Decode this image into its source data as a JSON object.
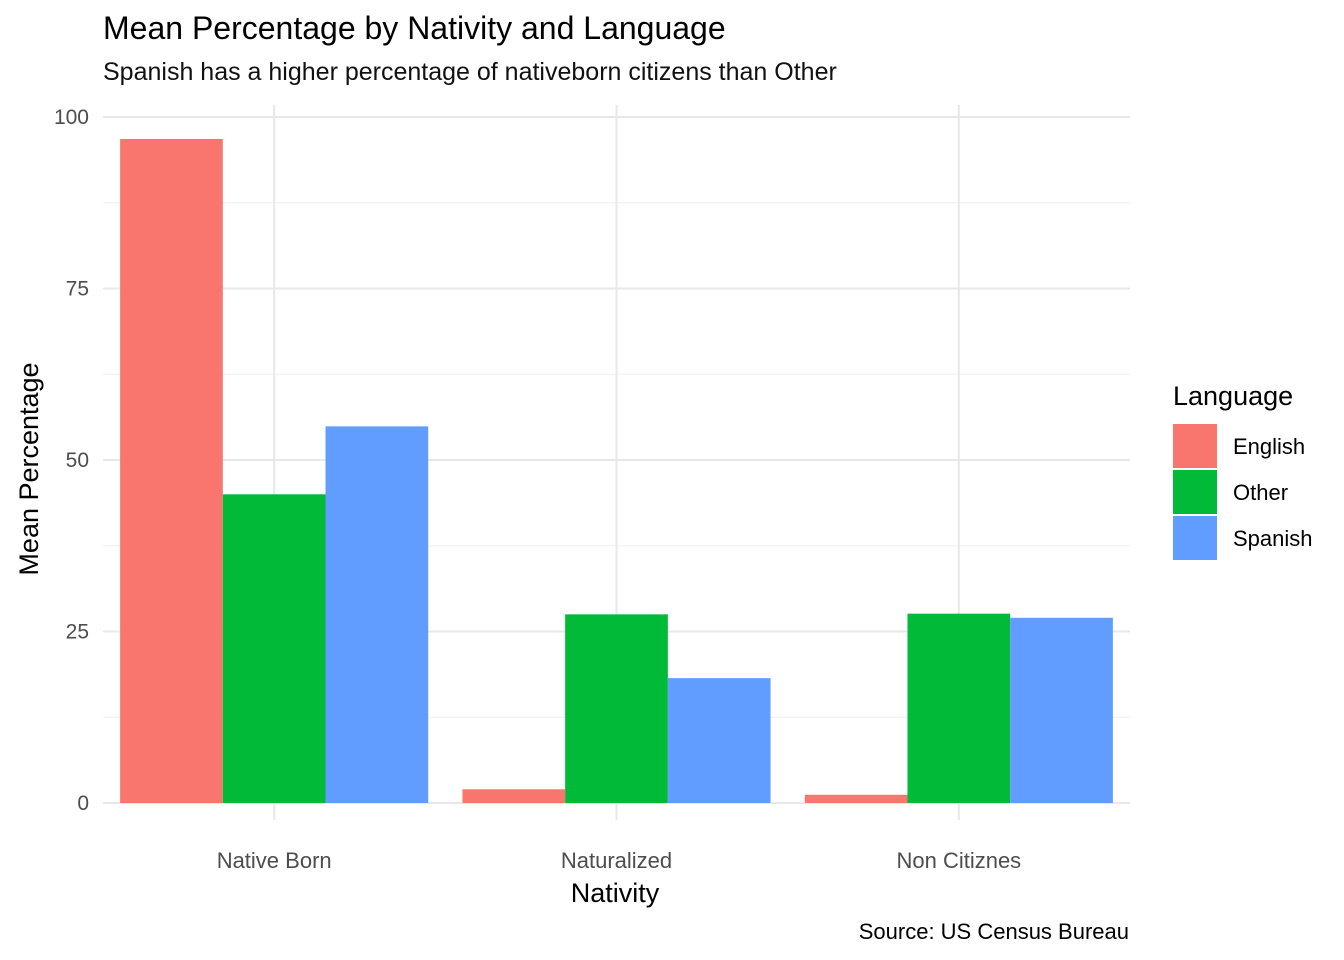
{
  "chart_data": {
    "type": "bar",
    "title": "Mean Percentage by Nativity and Language",
    "subtitle": "Spanish has a higher percentage of nativeborn citizens than Other",
    "caption": "Source: US Census Bureau",
    "xlabel": "Nativity",
    "ylabel": "Mean Percentage",
    "categories": [
      "Native Born",
      "Naturalized",
      "Non Citiznes"
    ],
    "ylim": [
      0,
      100
    ],
    "yticks": [
      0,
      25,
      50,
      75,
      100
    ],
    "grid": true,
    "legend": {
      "title": "Language",
      "position": "right"
    },
    "series": [
      {
        "name": "English",
        "color": "#F8766D",
        "values": [
          96.8,
          2.0,
          1.2
        ]
      },
      {
        "name": "Other",
        "color": "#00BA38",
        "values": [
          45.0,
          27.5,
          27.6
        ]
      },
      {
        "name": "Spanish",
        "color": "#619CFF",
        "values": [
          54.9,
          18.2,
          27.0
        ]
      }
    ]
  }
}
